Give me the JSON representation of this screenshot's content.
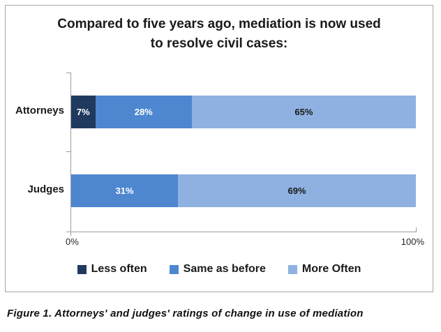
{
  "caption": "Figure 1. Attorneys' and judges' ratings of change in use of mediation",
  "colors": {
    "less_often": "#1f3a5e",
    "same_as_before": "#4e86d0",
    "more_often": "#8fb1e1",
    "axis": "#9d9d9d",
    "frame_border": "#a6a6a6"
  },
  "chart_data": {
    "type": "bar",
    "stacked": true,
    "orientation": "horizontal",
    "title": "Compared to five years ago, mediation is now used to resolve civil cases:",
    "categories": [
      "Attorneys",
      "Judges"
    ],
    "series": [
      {
        "name": "Less often",
        "color": "#1f3a5e",
        "label_color": "#ffffff",
        "values": [
          7,
          0
        ]
      },
      {
        "name": "Same as before",
        "color": "#4e86d0",
        "label_color": "#ffffff",
        "values": [
          28,
          31
        ]
      },
      {
        "name": "More Often",
        "color": "#8fb1e1",
        "label_color": "#1a1a1a",
        "values": [
          65,
          69
        ]
      }
    ],
    "value_label_format": "percent",
    "xlabel": "",
    "ylabel": "",
    "xlim": [
      0,
      100
    ],
    "x_tick_labels": [
      "0%",
      "100%"
    ],
    "grid": false,
    "legend_position": "bottom"
  }
}
